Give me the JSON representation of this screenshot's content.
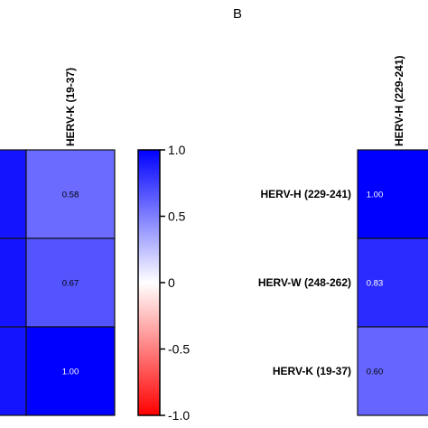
{
  "chart_data": [
    {
      "panel": "",
      "type": "heatmap",
      "columns": [
        "HERV-K (19-37)"
      ],
      "rows": [
        "",
        "",
        ""
      ],
      "values": [
        [
          0.58
        ],
        [
          0.67
        ],
        [
          1.0
        ]
      ],
      "cell_labels": [
        [
          "0.58"
        ],
        [
          "0.67"
        ],
        [
          "1.00"
        ]
      ]
    },
    {
      "panel": "B",
      "type": "heatmap",
      "columns": [
        "HERV-H (229-241)"
      ],
      "rows": [
        "HERV-H (229-241)",
        "HERV-W (248-262)",
        "HERV-K (19-37)"
      ],
      "values": [
        [
          1.0
        ],
        [
          0.83
        ],
        [
          0.6
        ]
      ],
      "cell_labels": [
        [
          "1.00"
        ],
        [
          "0.83"
        ],
        [
          "0.60"
        ]
      ]
    }
  ],
  "colorbar": {
    "min": -1.0,
    "max": 1.0,
    "ticks": [
      1.0,
      0.5,
      0,
      -0.5,
      -1.0
    ],
    "tick_labels": [
      "1.0",
      "0.5",
      "0",
      "-0.5",
      "-1.0"
    ],
    "colors": {
      "low": "#ff0000",
      "mid": "#ffffff",
      "high": "#0000ff"
    }
  }
}
